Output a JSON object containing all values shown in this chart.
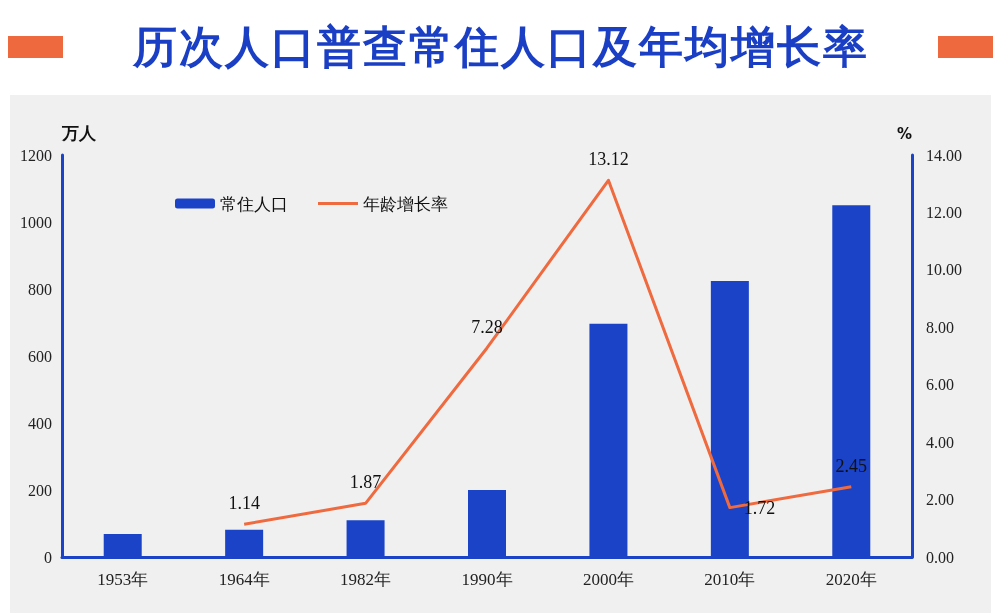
{
  "chart_data": {
    "type": "bar",
    "title": "历次人口普查常住人口及年均增长率",
    "categories": [
      "1953年",
      "1964年",
      "1982年",
      "1990年",
      "2000年",
      "2010年",
      "2020年"
    ],
    "ylabel": "万人",
    "y2label": "%",
    "ylim": [
      0,
      1200
    ],
    "yticks": [
      0,
      200,
      400,
      600,
      800,
      1000,
      1200
    ],
    "y2lim": [
      0,
      14
    ],
    "y2ticks": [
      {
        "value": 0,
        "label": "0.00"
      },
      {
        "value": 2,
        "label": "2.00"
      },
      {
        "value": 4,
        "label": "4.00"
      },
      {
        "value": 6,
        "label": "6.00"
      },
      {
        "value": 8,
        "label": "8.00"
      },
      {
        "value": 10,
        "label": "10.00"
      },
      {
        "value": 12,
        "label": "12.00"
      },
      {
        "value": 14,
        "label": "14.00"
      }
    ],
    "series": [
      {
        "name": "常住人口",
        "color": "#1a43c8",
        "values": [
          69,
          81,
          110,
          200,
          696,
          824,
          1050
        ]
      },
      {
        "name": "年龄增长率",
        "type": "line",
        "axis": "y2",
        "color": "#ef6a3e",
        "values": [
          null,
          1.14,
          1.87,
          7.28,
          13.12,
          1.72,
          2.45
        ],
        "value_labels": [
          null,
          "1.14",
          "1.87",
          "7.28",
          "13.12",
          "1.72",
          "2.45"
        ]
      }
    ],
    "legend": "top left",
    "grid": false,
    "marker": "none"
  }
}
